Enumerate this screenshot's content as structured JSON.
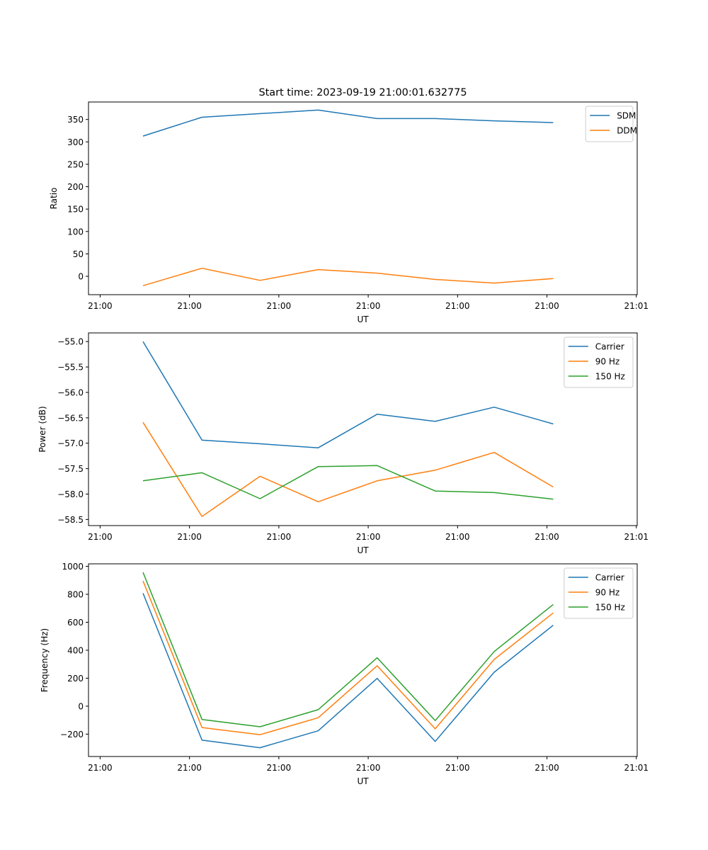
{
  "chart_data": [
    {
      "type": "line",
      "title": "Start time: 2023-09-19 21:00:01.632775",
      "xlabel": "UT",
      "ylabel": "Ratio",
      "x_tick_labels": [
        "21:00",
        "21:00",
        "21:00",
        "21:00",
        "21:00",
        "21:00",
        "21:01"
      ],
      "x_ticks": [
        0,
        1,
        2,
        3,
        4,
        5,
        6
      ],
      "xlim": [
        -0.13,
        6.01
      ],
      "x": [
        0.48,
        1.14,
        1.79,
        2.44,
        3.1,
        3.75,
        4.41,
        5.07
      ],
      "ylim": [
        -41,
        389
      ],
      "y_ticks": [
        0,
        50,
        100,
        150,
        200,
        250,
        300,
        350
      ],
      "y_tick_labels": [
        "0",
        "50",
        "100",
        "150",
        "200",
        "250",
        "300",
        "350"
      ],
      "grid": false,
      "legend_position": "top-right",
      "series": [
        {
          "name": "SDM",
          "color": "#1f77b4",
          "values": [
            313,
            355,
            363,
            371,
            352,
            352,
            347,
            343
          ]
        },
        {
          "name": "DDM",
          "color": "#ff7f0e",
          "values": [
            -21,
            18,
            -9,
            15,
            7,
            -7,
            -15,
            -5
          ]
        }
      ]
    },
    {
      "type": "line",
      "title": "",
      "xlabel": "UT",
      "ylabel": "Power (dB)",
      "x_tick_labels": [
        "21:00",
        "21:00",
        "21:00",
        "21:00",
        "21:00",
        "21:00",
        "21:01"
      ],
      "x_ticks": [
        0,
        1,
        2,
        3,
        4,
        5,
        6
      ],
      "xlim": [
        -0.13,
        6.01
      ],
      "x": [
        0.48,
        1.14,
        1.79,
        2.44,
        3.1,
        3.75,
        4.41,
        5.07
      ],
      "ylim": [
        -58.62,
        -54.83
      ],
      "y_ticks": [
        -58.5,
        -58.0,
        -57.5,
        -57.0,
        -56.5,
        -56.0,
        -55.5,
        -55.0
      ],
      "y_tick_labels": [
        "−58.5",
        "−58.0",
        "−57.5",
        "−57.0",
        "−56.5",
        "−56.0",
        "−55.5",
        "−55.0"
      ],
      "grid": false,
      "legend_position": "top-right",
      "series": [
        {
          "name": "Carrier",
          "color": "#1f77b4",
          "values": [
            -55.0,
            -56.94,
            -57.01,
            -57.09,
            -56.43,
            -56.57,
            -56.29,
            -56.62
          ]
        },
        {
          "name": "90 Hz",
          "color": "#ff7f0e",
          "values": [
            -56.59,
            -58.44,
            -57.65,
            -58.15,
            -57.74,
            -57.53,
            -57.18,
            -57.86
          ]
        },
        {
          "name": "150 Hz",
          "color": "#2ca02c",
          "values": [
            -57.74,
            -57.58,
            -58.09,
            -57.46,
            -57.44,
            -57.94,
            -57.97,
            -58.1
          ]
        }
      ]
    },
    {
      "type": "line",
      "title": "",
      "xlabel": "UT",
      "ylabel": "Frequency (Hz)",
      "x_tick_labels": [
        "21:00",
        "21:00",
        "21:00",
        "21:00",
        "21:00",
        "21:00",
        "21:01"
      ],
      "x_ticks": [
        0,
        1,
        2,
        3,
        4,
        5,
        6
      ],
      "xlim": [
        -0.13,
        6.01
      ],
      "x": [
        0.48,
        1.14,
        1.79,
        2.44,
        3.1,
        3.75,
        4.41,
        5.07
      ],
      "ylim": [
        -360,
        1018
      ],
      "y_ticks": [
        -200,
        0,
        200,
        400,
        600,
        800,
        1000
      ],
      "y_tick_labels": [
        "−200",
        "0",
        "200",
        "400",
        "600",
        "800",
        "1000"
      ],
      "grid": false,
      "legend_position": "top-right",
      "series": [
        {
          "name": "Carrier",
          "color": "#1f77b4",
          "values": [
            808,
            -243,
            -297,
            -176,
            199,
            -252,
            243,
            579
          ]
        },
        {
          "name": "90 Hz",
          "color": "#ff7f0e",
          "values": [
            896,
            -153,
            -204,
            -83,
            289,
            -162,
            334,
            667
          ]
        },
        {
          "name": "150 Hz",
          "color": "#2ca02c",
          "values": [
            957,
            -95,
            -147,
            -25,
            346,
            -103,
            391,
            727
          ]
        }
      ]
    }
  ]
}
